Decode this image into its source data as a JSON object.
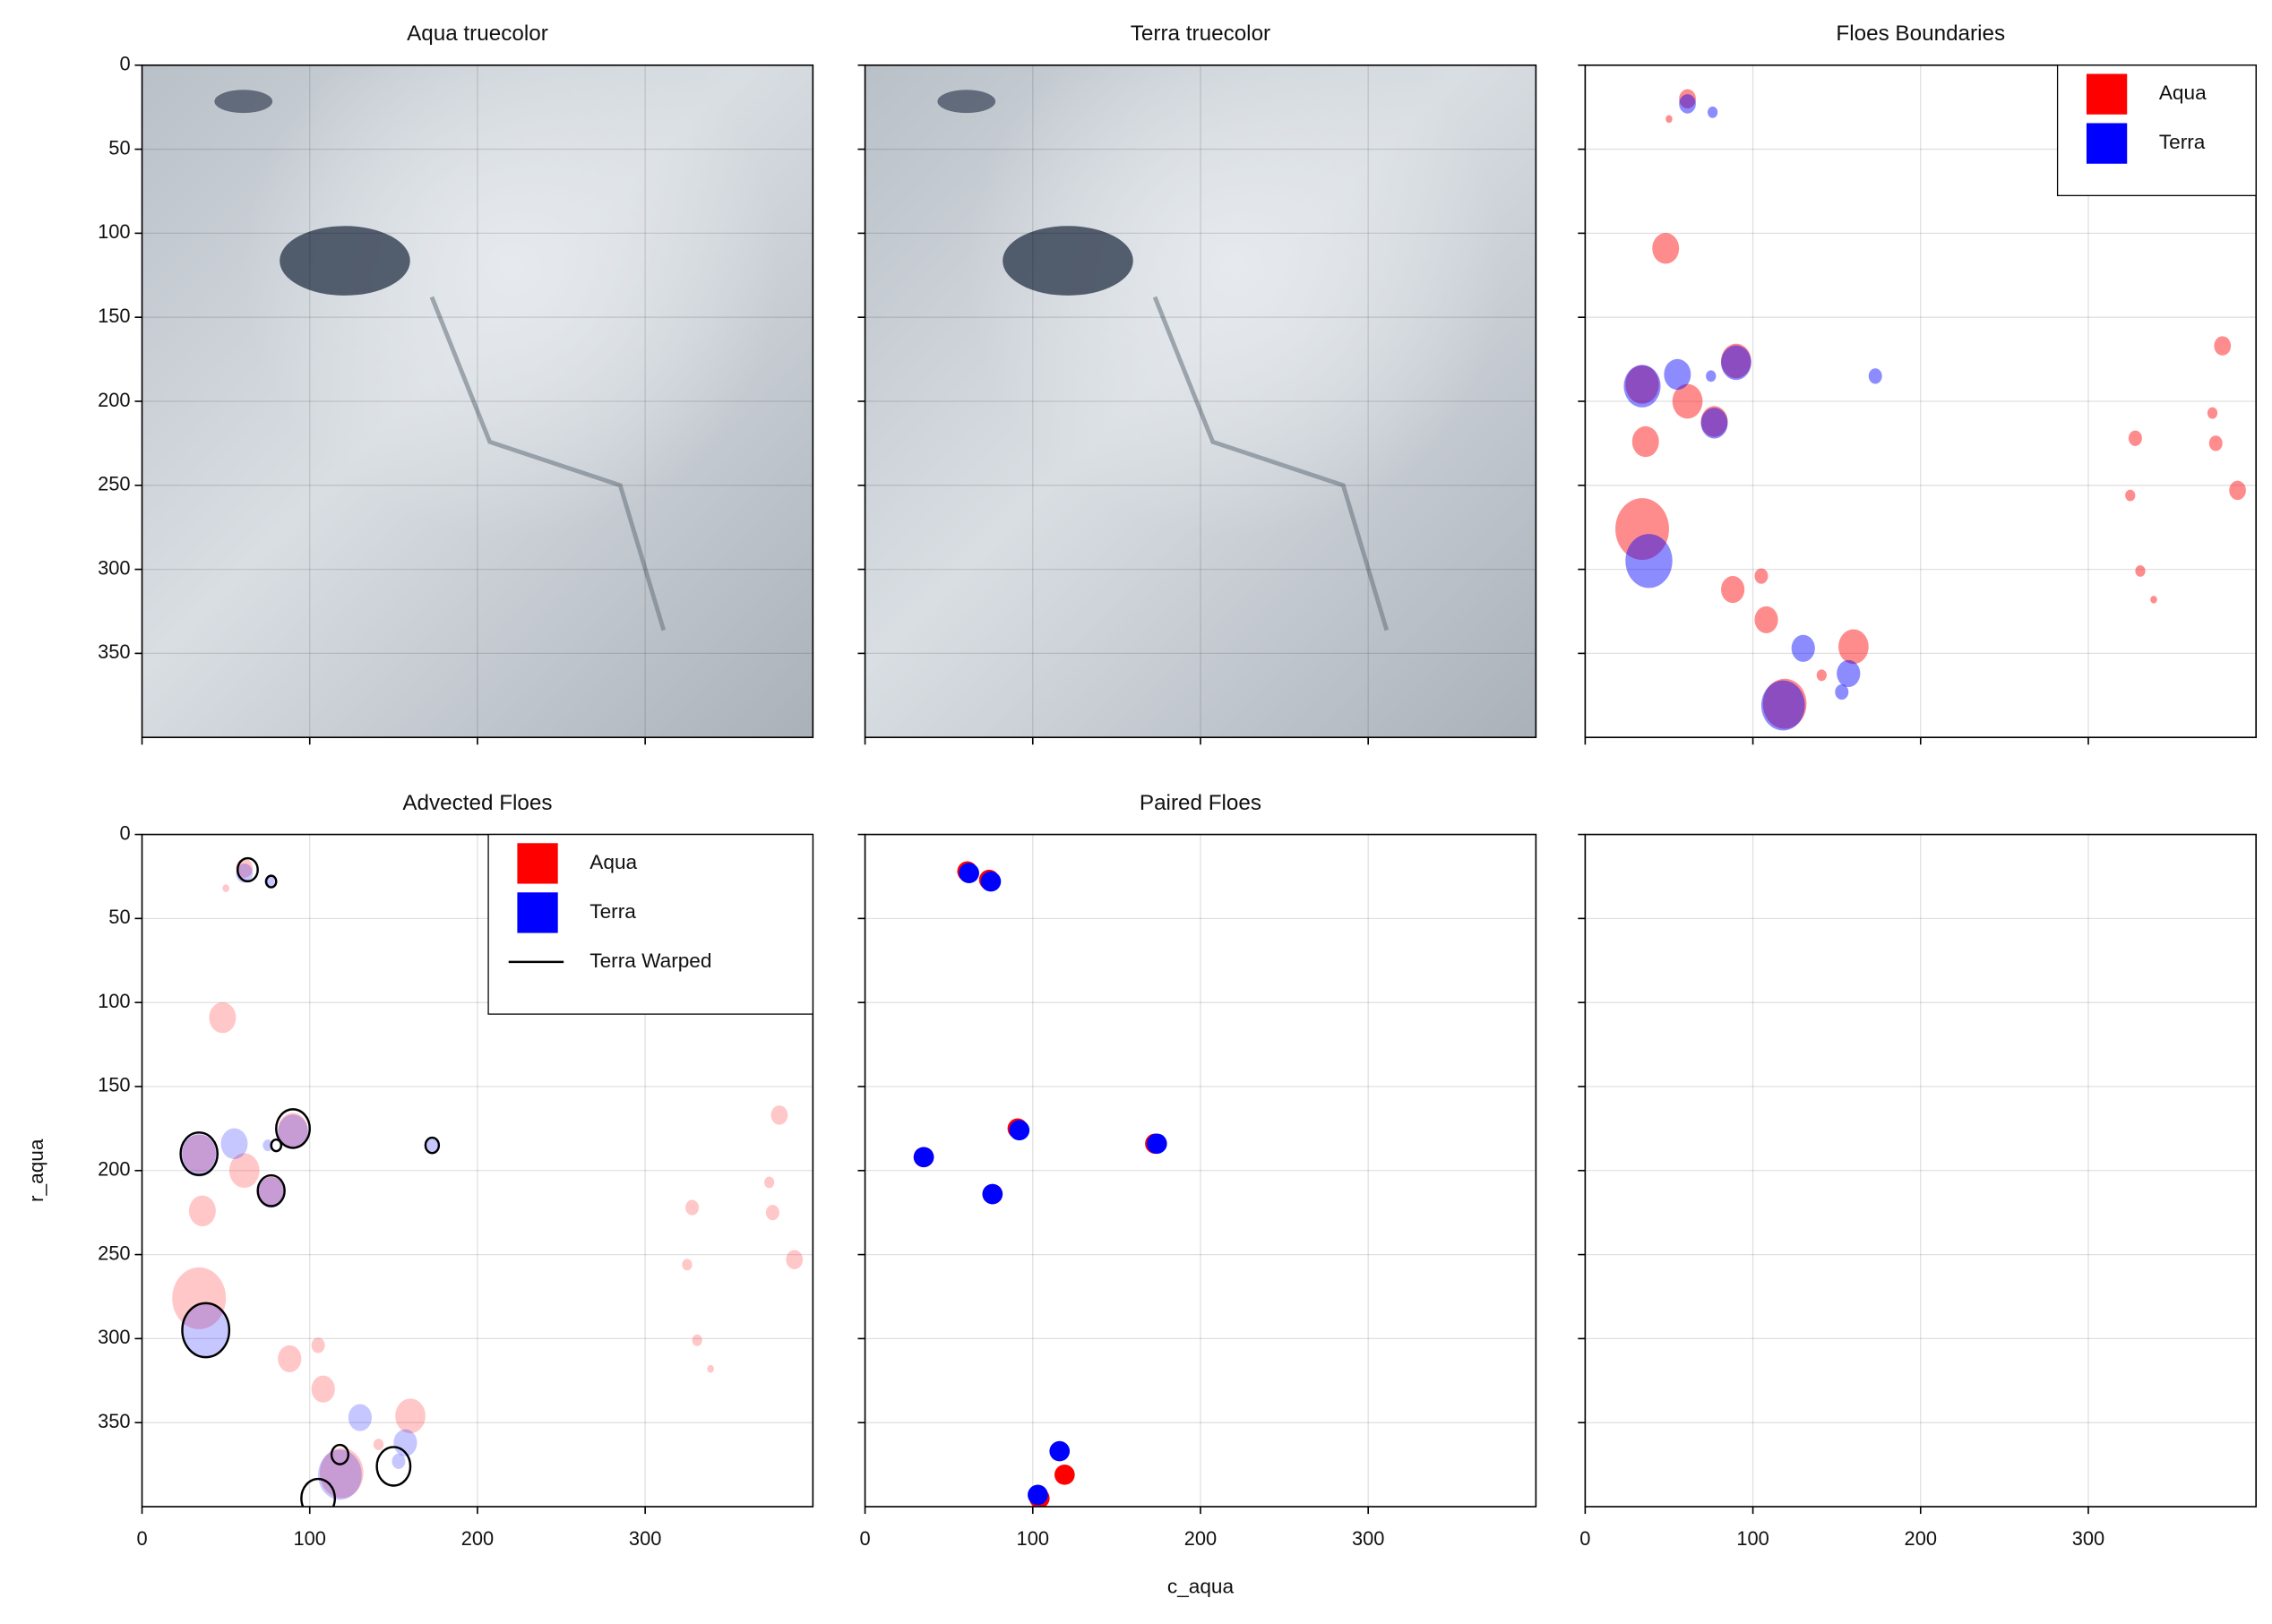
{
  "chart_data": [
    {
      "type": "image",
      "title": "Aqua truecolor",
      "xlim": [
        0,
        400
      ],
      "ylim": [
        400,
        0
      ],
      "xticks": [
        0,
        100,
        200,
        300
      ],
      "yticks": [
        0,
        50,
        100,
        150,
        200,
        250,
        300,
        350
      ],
      "grid": true
    },
    {
      "type": "image",
      "title": "Terra truecolor",
      "xlim": [
        0,
        400
      ],
      "ylim": [
        400,
        0
      ],
      "xticks": [
        0,
        100,
        200,
        300
      ],
      "yticks": [
        0,
        50,
        100,
        150,
        200,
        250,
        300,
        350
      ],
      "grid": true
    },
    {
      "type": "scatter",
      "title": "Floes Boundaries",
      "xlim": [
        0,
        400
      ],
      "ylim": [
        400,
        0
      ],
      "xticks": [
        0,
        100,
        200,
        300
      ],
      "yticks": [
        0,
        50,
        100,
        150,
        200,
        250,
        300,
        350
      ],
      "grid": true,
      "legend": "upper right",
      "series": [
        {
          "name": "Aqua",
          "color": "#ff0000",
          "alpha": 0.45,
          "filled": true,
          "x": [
            48,
            61,
            36,
            34,
            88,
            108,
            160,
            380,
            374,
            376,
            389,
            328,
            325,
            331,
            339,
            105,
            141,
            61,
            34,
            90,
            77,
            119,
            50
          ],
          "values": [
            109,
            200,
            224,
            276,
            312,
            330,
            346,
            167,
            207,
            225,
            253,
            222,
            256,
            301,
            318,
            304,
            363,
            20,
            190,
            176,
            212,
            380,
            32
          ],
          "sizes": [
            8,
            9,
            8,
            16,
            7,
            7,
            9,
            5,
            3,
            4,
            5,
            4,
            3,
            3,
            2,
            4,
            3,
            5,
            10,
            9,
            8,
            13,
            2
          ]
        },
        {
          "name": "Terra",
          "color": "#0000ff",
          "alpha": 0.45,
          "filled": true,
          "x": [
            61,
            76,
            34,
            55,
            90,
            77,
            38,
            130,
            157,
            118,
            173,
            153,
            75
          ],
          "values": [
            23,
            28,
            191,
            184,
            177,
            213,
            295,
            347,
            362,
            381,
            185,
            373,
            185
          ],
          "sizes": [
            5,
            3,
            11,
            8,
            9,
            8,
            14,
            7,
            7,
            13,
            4,
            4,
            3
          ]
        }
      ]
    },
    {
      "type": "scatter",
      "title": "Advected Floes",
      "y_label": "r_aqua",
      "xlim": [
        0,
        400
      ],
      "ylim": [
        400,
        0
      ],
      "xticks": [
        0,
        100,
        200,
        300
      ],
      "yticks": [
        0,
        50,
        100,
        150,
        200,
        250,
        300,
        350
      ],
      "grid": true,
      "legend": "upper right",
      "series": [
        {
          "name": "Aqua",
          "color": "#ff0000",
          "alpha": 0.22,
          "filled": true,
          "x": [
            48,
            61,
            36,
            34,
            88,
            108,
            160,
            380,
            374,
            376,
            389,
            328,
            325,
            331,
            339,
            105,
            141,
            61,
            34,
            90,
            77,
            119,
            50
          ],
          "values": [
            109,
            200,
            224,
            276,
            312,
            330,
            346,
            167,
            207,
            225,
            253,
            222,
            256,
            301,
            318,
            304,
            363,
            20,
            190,
            176,
            212,
            380,
            32
          ],
          "sizes": [
            8,
            9,
            8,
            16,
            7,
            7,
            9,
            5,
            3,
            4,
            5,
            4,
            3,
            3,
            2,
            4,
            3,
            5,
            10,
            9,
            8,
            13,
            2
          ]
        },
        {
          "name": "Terra",
          "color": "#0000ff",
          "alpha": 0.22,
          "filled": true,
          "x": [
            61,
            76,
            34,
            55,
            90,
            77,
            38,
            130,
            157,
            118,
            173,
            153,
            75
          ],
          "values": [
            23,
            28,
            191,
            184,
            177,
            213,
            295,
            347,
            362,
            381,
            185,
            373,
            185
          ],
          "sizes": [
            5,
            3,
            11,
            8,
            9,
            8,
            14,
            7,
            7,
            13,
            4,
            4,
            3
          ]
        },
        {
          "name": "Terra Warped",
          "color": "#000000",
          "alpha": 1,
          "filled": false,
          "x": [
            63,
            77,
            34,
            90,
            77,
            38,
            173,
            118,
            150,
            105,
            80
          ],
          "values": [
            21,
            28,
            190,
            175,
            212,
            295,
            185,
            369,
            376,
            395,
            185
          ],
          "sizes": [
            6,
            3,
            11,
            10,
            8,
            14,
            4,
            5,
            10,
            10,
            3
          ]
        }
      ]
    },
    {
      "type": "scatter",
      "title": "Paired Floes",
      "x_label": "c_aqua",
      "xlim": [
        0,
        400
      ],
      "ylim": [
        400,
        0
      ],
      "xticks": [
        0,
        100,
        200,
        300
      ],
      "yticks": [
        0,
        50,
        100,
        150,
        200,
        250,
        300,
        350
      ],
      "grid": true,
      "series": [
        {
          "name": "Aqua",
          "color": "#ff0000",
          "alpha": 1,
          "filled": true,
          "x": [
            61,
            74,
            35,
            91,
            76,
            173,
            119,
            104
          ],
          "values": [
            22,
            27,
            192,
            175,
            214,
            184,
            381,
            395
          ]
        },
        {
          "name": "Terra",
          "color": "#0000ff",
          "alpha": 1,
          "filled": true,
          "x": [
            62,
            75,
            35,
            92,
            76,
            174,
            116,
            103
          ],
          "values": [
            23,
            28,
            192,
            176,
            214,
            184,
            367,
            393
          ]
        }
      ]
    },
    {
      "type": "scatter",
      "xlim": [
        0,
        400
      ],
      "ylim": [
        400,
        0
      ],
      "xticks": [
        0,
        100,
        200,
        300
      ],
      "yticks": [
        0,
        50,
        100,
        150,
        200,
        250,
        300,
        350
      ],
      "grid": true,
      "series": []
    }
  ]
}
